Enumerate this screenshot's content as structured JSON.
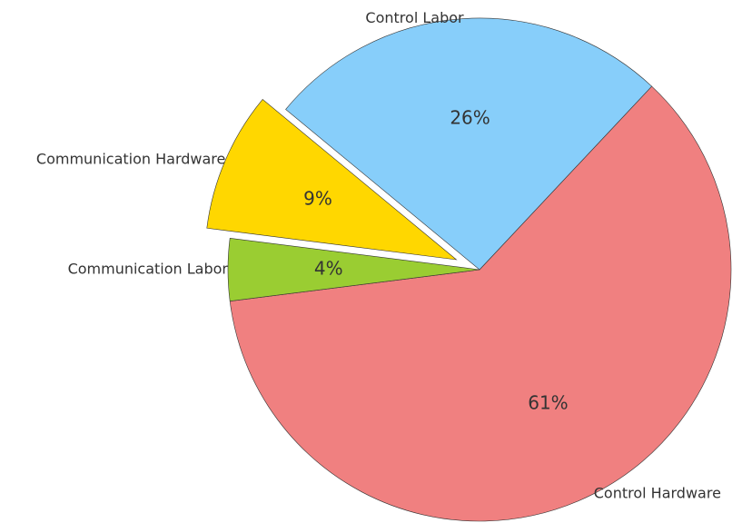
{
  "chart_data": {
    "type": "pie",
    "categories": [
      "Control Hardware",
      "Control Labor",
      "Communication Hardware",
      "Communication Labor"
    ],
    "values": [
      61,
      26,
      9,
      4
    ],
    "value_labels": [
      "61%",
      "26%",
      "9%",
      "4%"
    ],
    "colors": [
      "#F08080",
      "#87CEFA",
      "#FFD700",
      "#9ACD32"
    ],
    "explode": [
      0,
      0,
      0.1,
      0
    ]
  }
}
